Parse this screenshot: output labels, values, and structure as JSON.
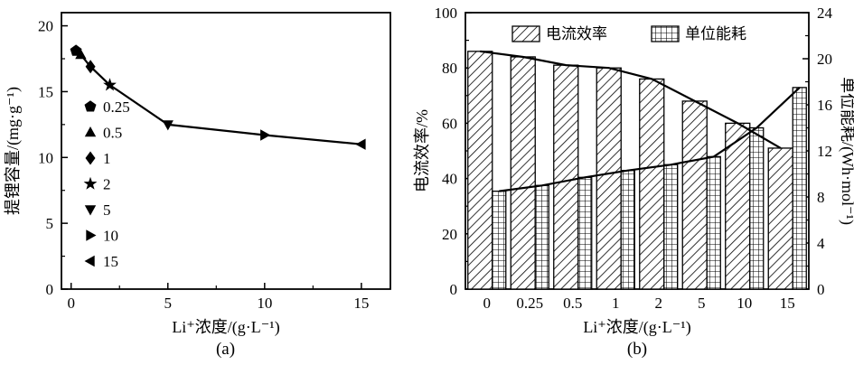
{
  "figure": {
    "captions": [
      "(a)",
      "(b)"
    ]
  },
  "chart_data": [
    {
      "type": "line",
      "title": "",
      "xlabel": "Li⁺浓度/(g·L⁻¹)",
      "ylabel": "提锂容量/(mg·g⁻¹)",
      "xlim": [
        0,
        16
      ],
      "ylim": [
        0,
        20
      ],
      "xticks": [
        0,
        5,
        10,
        15
      ],
      "yticks": [
        0,
        5,
        10,
        15,
        20
      ],
      "grid": false,
      "legend_position": "center-left-inside",
      "series": [
        {
          "name": "提锂容量",
          "points": [
            {
              "x": 0.25,
              "y": 18.1,
              "marker": "pentagon",
              "label": "0.25"
            },
            {
              "x": 0.5,
              "y": 17.8,
              "marker": "triangle-up",
              "label": "0.5"
            },
            {
              "x": 1,
              "y": 16.9,
              "marker": "diamond",
              "label": "1"
            },
            {
              "x": 2,
              "y": 15.5,
              "marker": "star",
              "label": "2"
            },
            {
              "x": 5,
              "y": 12.5,
              "marker": "triangle-down",
              "label": "5"
            },
            {
              "x": 10,
              "y": 11.7,
              "marker": "triangle-right",
              "label": "10"
            },
            {
              "x": 15,
              "y": 11.0,
              "marker": "triangle-left",
              "label": "15"
            }
          ]
        }
      ],
      "legend": [
        {
          "marker": "pentagon",
          "label": "0.25"
        },
        {
          "marker": "triangle-up",
          "label": "0.5"
        },
        {
          "marker": "diamond",
          "label": "1"
        },
        {
          "marker": "star",
          "label": "2"
        },
        {
          "marker": "triangle-down",
          "label": "5"
        },
        {
          "marker": "triangle-right",
          "label": "10"
        },
        {
          "marker": "triangle-left",
          "label": "15"
        }
      ]
    },
    {
      "type": "bar",
      "title": "",
      "xlabel": "Li⁺浓度/(g·L⁻¹)",
      "ylabel_left": "电流效率/%",
      "ylabel_right": "单位能耗/(Wh·mol⁻¹)",
      "ylim_left": [
        0,
        100
      ],
      "ylim_right": [
        0,
        24
      ],
      "yticks_left": [
        0,
        20,
        40,
        60,
        80,
        100
      ],
      "yticks_right": [
        0,
        4,
        8,
        12,
        16,
        20,
        24
      ],
      "grid": false,
      "legend_position": "top-inside",
      "categories": [
        "0",
        "0.25",
        "0.5",
        "1",
        "2",
        "5",
        "10",
        "15"
      ],
      "series": [
        {
          "name": "电流效率",
          "axis": "left",
          "hatch": "diagonal",
          "line_overlay": true,
          "values": [
            86,
            84,
            81,
            80,
            76,
            68,
            60,
            51
          ]
        },
        {
          "name": "单位能耗",
          "axis": "right",
          "hatch": "grid",
          "line_overlay": true,
          "values": [
            8.5,
            9.0,
            9.7,
            10.3,
            10.8,
            11.5,
            14.0,
            17.5
          ]
        }
      ],
      "legend": [
        {
          "label": "电流效率",
          "hatch": "diagonal"
        },
        {
          "label": "单位能耗",
          "hatch": "grid"
        }
      ],
      "colors": {
        "ink": "#000000",
        "background": "#ffffff"
      }
    }
  ]
}
